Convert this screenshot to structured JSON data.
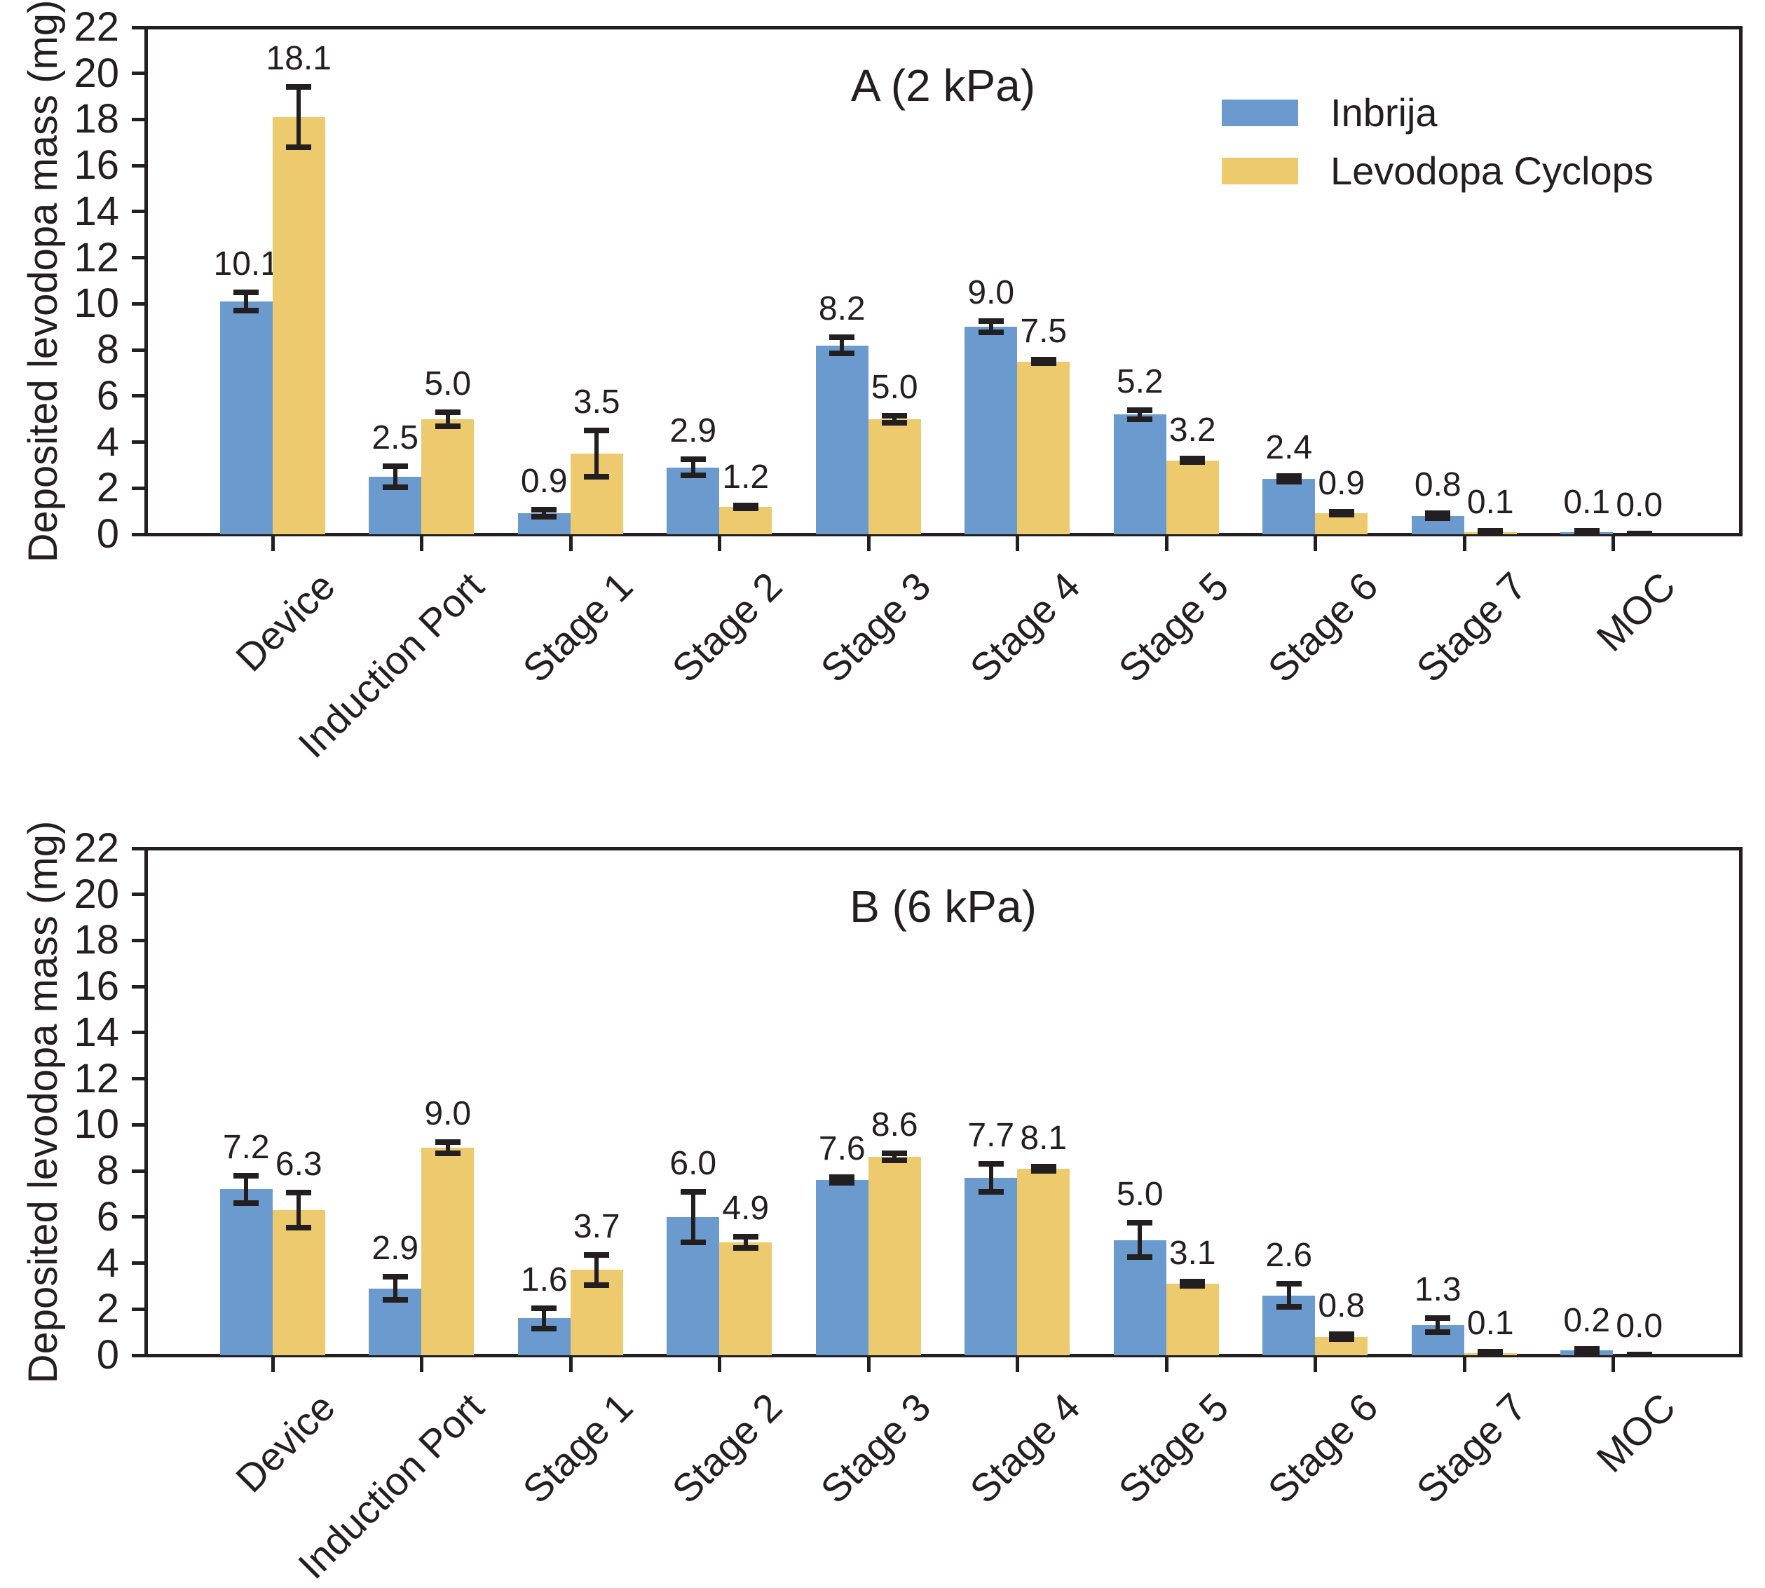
{
  "figure": {
    "background": "#ffffff",
    "style": {
      "axis_color": "#231f20",
      "text_color": "#231f20",
      "inbrija_color": "#6b9bce",
      "levodopa_cyclops_color": "#edca6e"
    }
  },
  "chart_data": [
    {
      "type": "bar",
      "title": "A (2 kPa)",
      "ylabel": "Deposited levodopa mass (mg)",
      "xlabel": "",
      "ylim": [
        0,
        22
      ],
      "ytick_step": 2,
      "grid": false,
      "show_legend": true,
      "legend_position": "upper right",
      "value_label_decimals": 1,
      "categories": [
        "Device",
        "Induction Port",
        "Stage 1",
        "Stage 2",
        "Stage 3",
        "Stage 4",
        "Stage 5",
        "Stage 6",
        "Stage 7",
        "MOC"
      ],
      "series": [
        {
          "name": "Inbrija",
          "color": "#6b9bce",
          "values": [
            10.1,
            2.5,
            0.9,
            2.9,
            8.2,
            9.0,
            5.2,
            2.4,
            0.8,
            0.1
          ],
          "errors": [
            0.4,
            0.45,
            0.15,
            0.35,
            0.35,
            0.25,
            0.2,
            0.12,
            0.1,
            0.05
          ]
        },
        {
          "name": "Levodopa Cyclops",
          "color": "#edca6e",
          "values": [
            18.1,
            5.0,
            3.5,
            1.2,
            5.0,
            7.5,
            3.2,
            0.9,
            0.1,
            0.0
          ],
          "errors": [
            1.3,
            0.3,
            1.0,
            0.06,
            0.15,
            0.08,
            0.08,
            0.06,
            0.04,
            0.02
          ]
        }
      ]
    },
    {
      "type": "bar",
      "title": "B (6 kPa)",
      "ylabel": "Deposited levodopa mass (mg)",
      "xlabel": "",
      "ylim": [
        0,
        22
      ],
      "ytick_step": 2,
      "grid": false,
      "show_legend": false,
      "legend_position": null,
      "value_label_decimals": 1,
      "categories": [
        "Device",
        "Induction Port",
        "Stage 1",
        "Stage 2",
        "Stage 3",
        "Stage 4",
        "Stage 5",
        "Stage 6",
        "Stage 7",
        "MOC"
      ],
      "series": [
        {
          "name": "Inbrija",
          "color": "#6b9bce",
          "values": [
            7.2,
            2.9,
            1.6,
            6.0,
            7.6,
            7.7,
            5.0,
            2.6,
            1.3,
            0.2
          ],
          "errors": [
            0.6,
            0.5,
            0.45,
            1.1,
            0.12,
            0.6,
            0.75,
            0.5,
            0.3,
            0.08
          ]
        },
        {
          "name": "Levodopa Cyclops",
          "color": "#edca6e",
          "values": [
            6.3,
            9.0,
            3.7,
            4.9,
            8.6,
            8.1,
            3.1,
            0.8,
            0.1,
            0.0
          ],
          "errors": [
            0.75,
            0.25,
            0.65,
            0.25,
            0.15,
            0.1,
            0.08,
            0.1,
            0.04,
            0.02
          ]
        }
      ]
    }
  ]
}
